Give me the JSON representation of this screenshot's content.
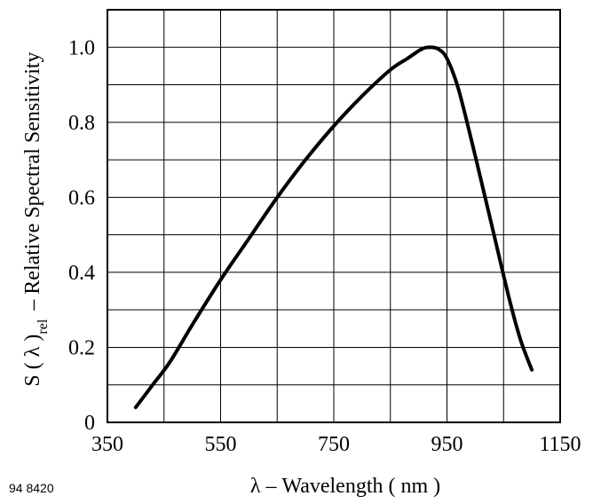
{
  "chart_data": {
    "type": "line",
    "xlabel": "λ – Wavelength ( nm )",
    "ylabel_prefix": "S ( λ )",
    "ylabel_sub": "rel",
    "ylabel_suffix": "– Relative Spectral Sensitivity",
    "xlim": [
      350,
      1150
    ],
    "ylim": [
      0,
      1.1
    ],
    "x_ticks": [
      350,
      550,
      750,
      950,
      1150
    ],
    "x_tick_labels": [
      "350",
      "550",
      "750",
      "950",
      "1150"
    ],
    "y_ticks": [
      0,
      0.2,
      0.4,
      0.6,
      0.8,
      1.0
    ],
    "y_tick_labels": [
      "0",
      "0.2",
      "0.4",
      "0.6",
      "0.8",
      "1.0"
    ],
    "x_grid": [
      350,
      450,
      550,
      650,
      750,
      850,
      950,
      1050,
      1150
    ],
    "y_grid": [
      0,
      0.1,
      0.2,
      0.3,
      0.4,
      0.5,
      0.6,
      0.7,
      0.8,
      0.9,
      1.0,
      1.1
    ],
    "grid": true,
    "series": [
      {
        "x": [
          400,
          430,
          460,
          500,
          550,
          600,
          650,
          700,
          750,
          800,
          850,
          880,
          905,
          920,
          935,
          950,
          970,
          1000,
          1030,
          1060,
          1080,
          1100
        ],
        "y": [
          0.04,
          0.1,
          0.16,
          0.26,
          0.38,
          0.49,
          0.6,
          0.7,
          0.79,
          0.87,
          0.94,
          0.97,
          0.995,
          1.0,
          0.995,
          0.97,
          0.89,
          0.71,
          0.52,
          0.33,
          0.22,
          0.14
        ]
      }
    ]
  },
  "figure_id": "94 8420"
}
